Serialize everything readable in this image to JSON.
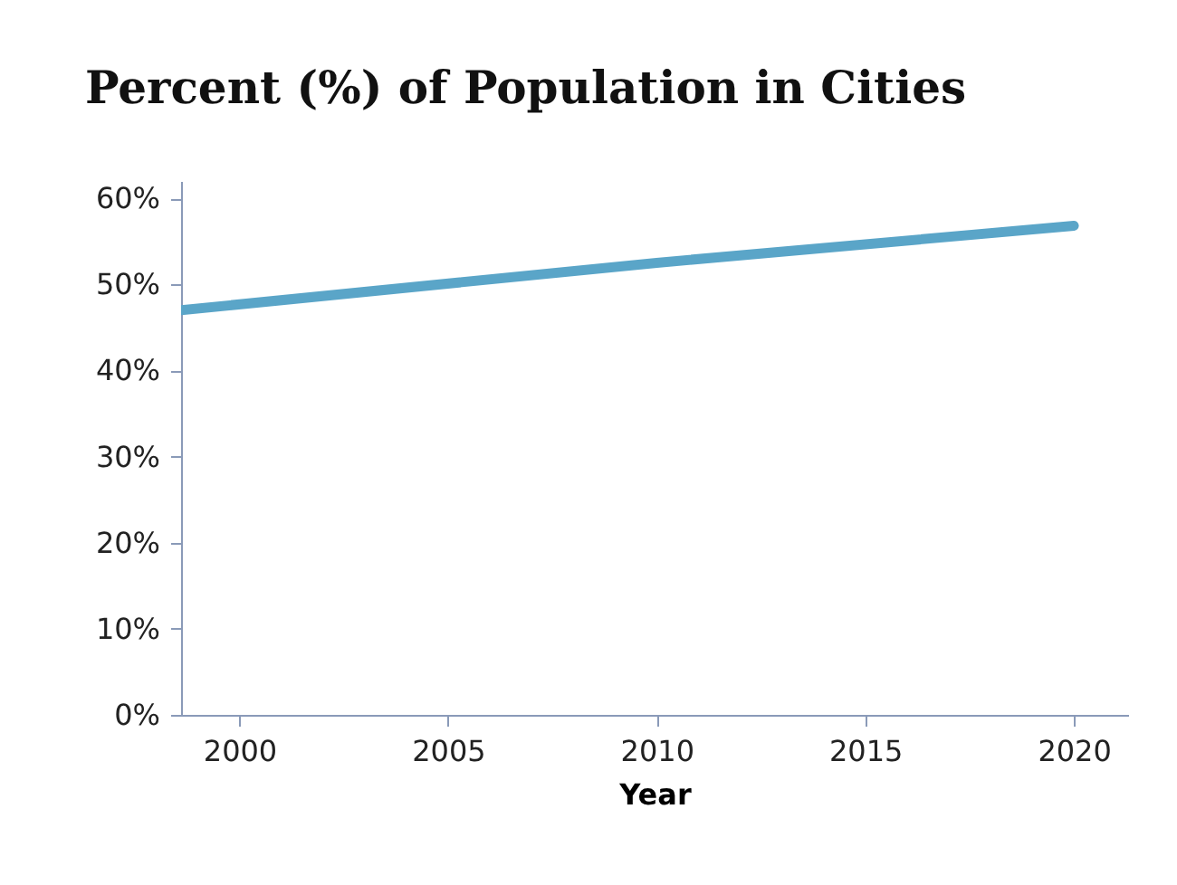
{
  "chart_data": {
    "type": "line",
    "title": "Percent (%) of Population in Cities",
    "xlabel": "Year",
    "x": [
      1998.6,
      2010,
      2020
    ],
    "values": [
      47,
      52.5,
      56.8
    ],
    "color": "#5aa5c8",
    "xlim": [
      1998.6,
      2021.3
    ],
    "xticks": [
      2000,
      2005,
      2010,
      2015,
      2020
    ],
    "ylim": [
      0,
      62
    ],
    "yticks": [
      {
        "value": 0,
        "label": "0%"
      },
      {
        "value": 10,
        "label": "10%"
      },
      {
        "value": 20,
        "label": "20%"
      },
      {
        "value": 30,
        "label": "30%"
      },
      {
        "value": 40,
        "label": "40%"
      },
      {
        "value": 50,
        "label": "50%"
      },
      {
        "value": 60,
        "label": "60%"
      }
    ],
    "grid": false,
    "marker": "none",
    "line_style": "solid"
  }
}
